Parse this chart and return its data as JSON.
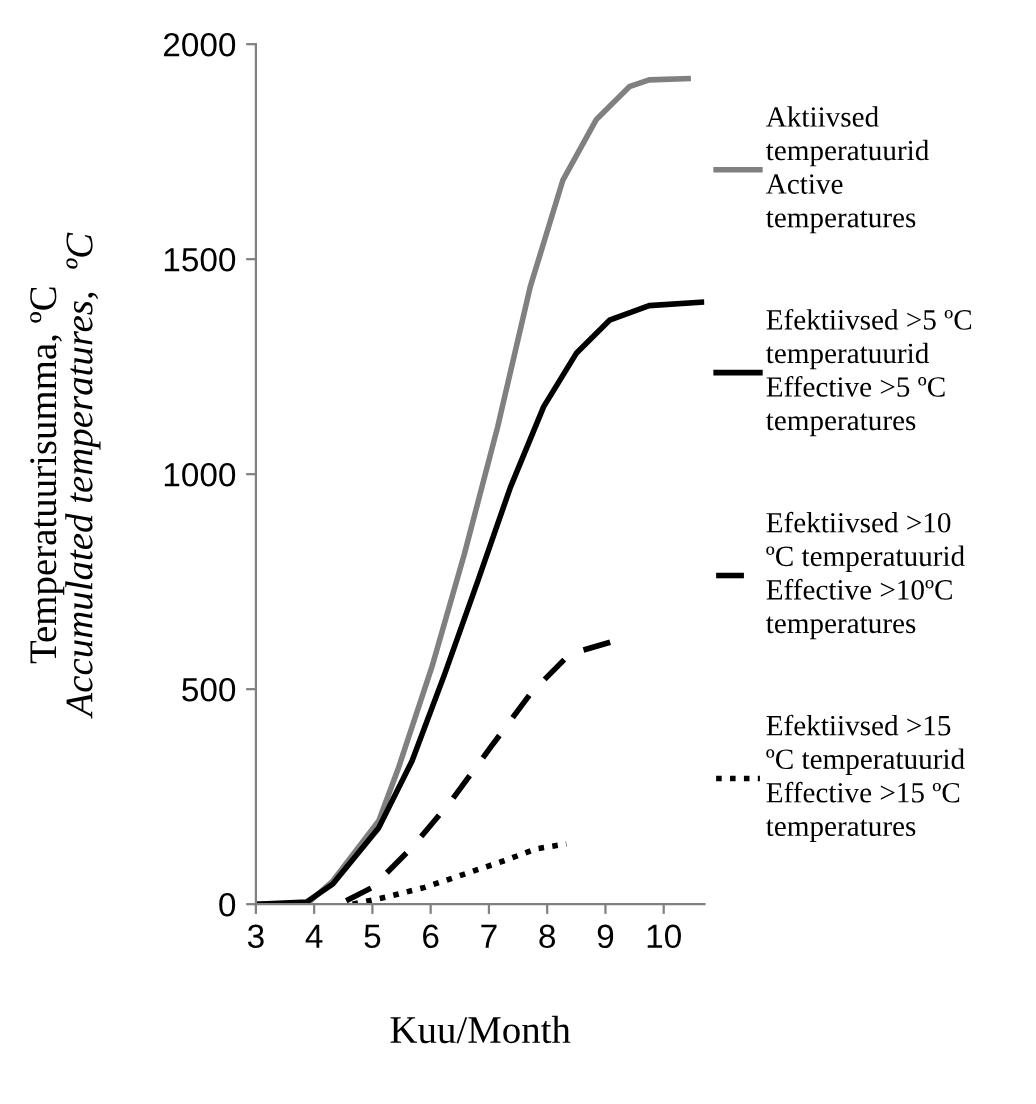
{
  "chart_data": {
    "type": "line",
    "xlabel": "Kuu/Month",
    "ylabel": "Temperatuurisumma, ºC\nAccumulated temperatures,  ºC",
    "xlim": [
      3,
      10.7
    ],
    "xticks": [
      3,
      4,
      5,
      6,
      7,
      8,
      9,
      10
    ],
    "ylim": [
      0,
      2000
    ],
    "yticks": [
      0,
      500,
      1000,
      1500,
      2000
    ],
    "grid": false,
    "legend": "right",
    "marker": "none",
    "series": [
      {
        "name": "Aktiivsed\ntemperatuurid\nActive\ntemperatures",
        "color": "#808080",
        "line_style": "solid",
        "x": [
          3,
          3.87,
          4.32,
          5.11,
          5.45,
          6.02,
          6.58,
          7.15,
          7.71,
          8.27,
          8.84,
          9.41,
          9.75,
          10.42
        ],
        "values": [
          0,
          0,
          54,
          194,
          318,
          551,
          815,
          1110,
          1436,
          1684,
          1824,
          1901,
          1917,
          1920
        ]
      },
      {
        "name": "Efektiivsed >5 ºC\ntemperatuurid\nEffective >5 ºC\ntemperatures",
        "color": "#000000",
        "line_style": "solid",
        "x": [
          3,
          3.87,
          4.32,
          5.11,
          5.68,
          6.24,
          6.81,
          7.37,
          7.94,
          8.5,
          9.07,
          9.75,
          10.65
        ],
        "values": [
          0,
          5,
          47,
          178,
          333,
          535,
          752,
          970,
          1157,
          1281,
          1358,
          1392,
          1400
        ]
      },
      {
        "name": "Efektiivsed >10\nºC temperatuurid\nEffective >10ºC\ntemperatures",
        "color": "#000000",
        "line_style": "dashed",
        "x": [
          4.55,
          5.0,
          5.68,
          6.35,
          7.03,
          7.71,
          8.39,
          9.18
        ],
        "values": [
          8,
          39,
          132,
          240,
          365,
          489,
          582,
          613
        ]
      },
      {
        "name": "Efektiivsed >15\nºC temperatuurid\nEffective >15 ºC\ntemperatures",
        "color": "#000000",
        "line_style": "dotted",
        "x": [
          4.66,
          5.22,
          5.9,
          6.58,
          7.26,
          7.82,
          8.33
        ],
        "values": [
          0,
          16,
          39,
          70,
          101,
          129,
          140
        ]
      }
    ]
  }
}
